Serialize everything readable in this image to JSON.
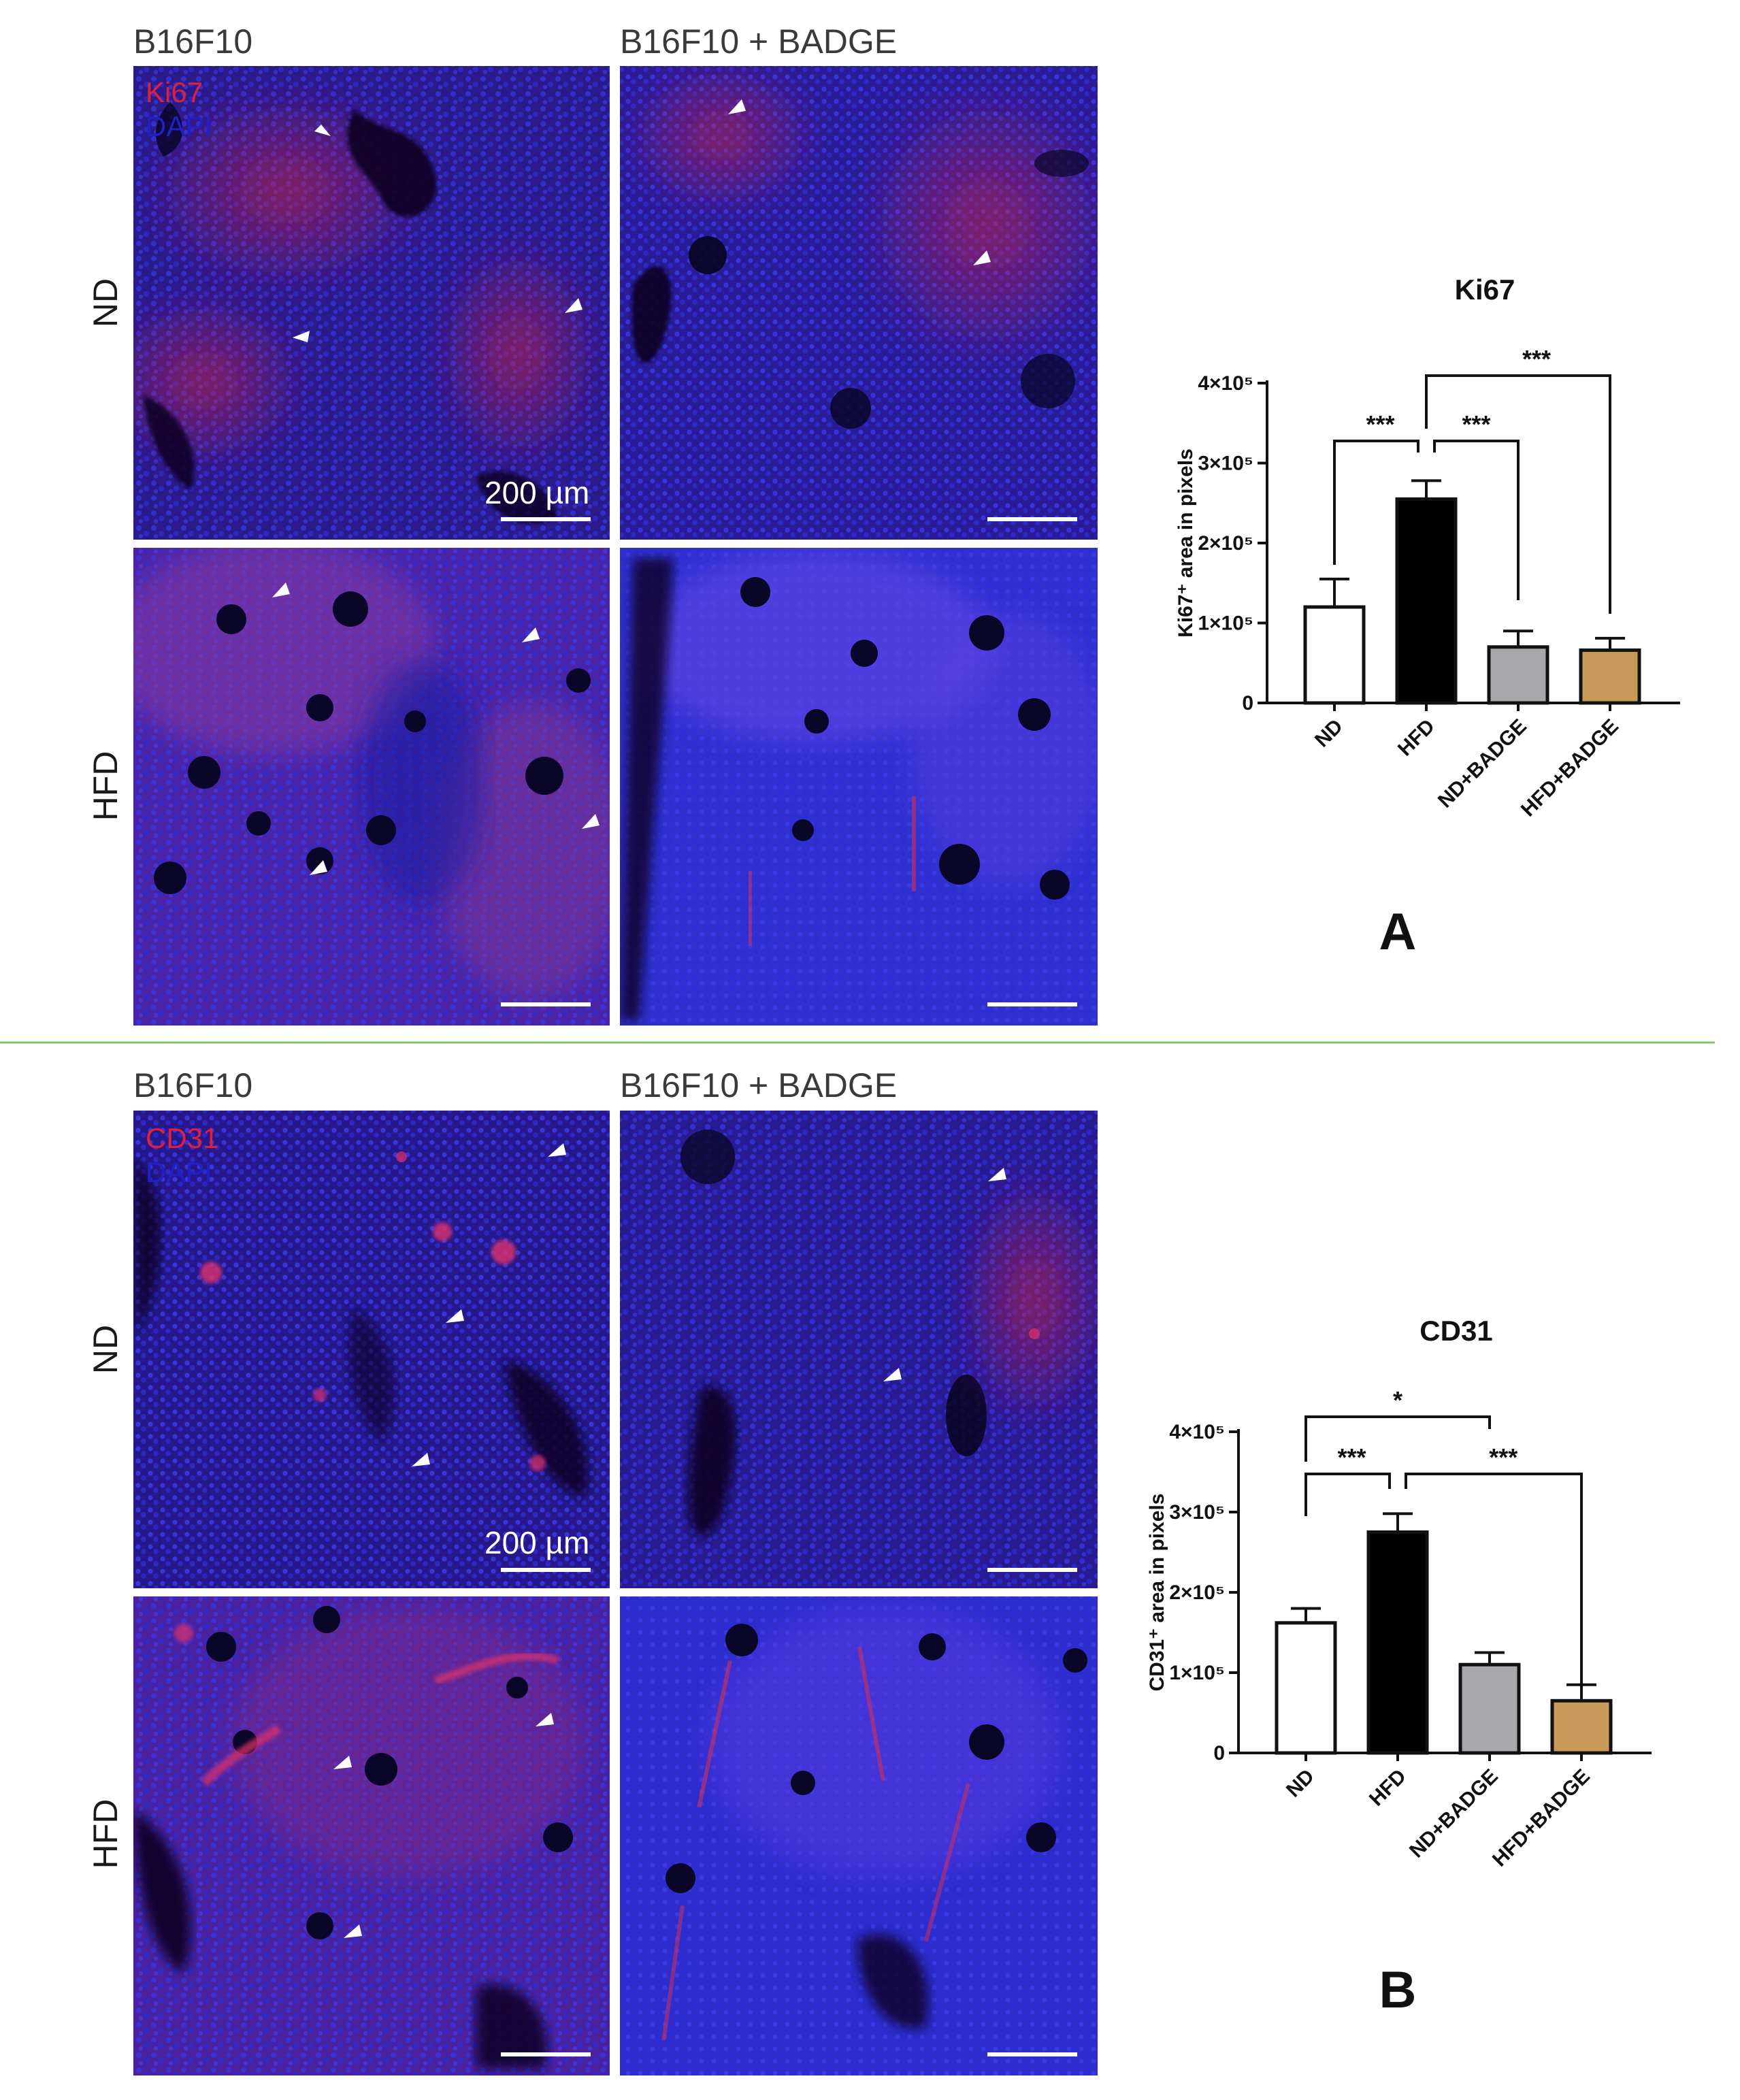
{
  "colors": {
    "nuclei_blue": "#2a2ad0",
    "tissue_purple": "#5a2a9a",
    "stain_red": "#e0203a",
    "separator_green": "#8ac26a",
    "bar_ND": "#ffffff",
    "bar_HFD": "#000000",
    "bar_ND_BADGE": "#a8a8ac",
    "bar_HFD_BADGE": "#c89a5a"
  },
  "icons": [
    "arrowhead-icon"
  ],
  "panel_A": {
    "col_titles": [
      "B16F10",
      "B16F10 + BADGE"
    ],
    "row_labels": [
      "ND",
      "HFD"
    ],
    "stain": "Ki67",
    "counterstain": "DAPI",
    "scale_bar_label": "200 µm",
    "letter": "A"
  },
  "panel_B": {
    "col_titles": [
      "B16F10",
      "B16F10 + BADGE"
    ],
    "row_labels": [
      "ND",
      "HFD"
    ],
    "stain": "CD31",
    "counterstain": "DAPI",
    "scale_bar_label": "200 µm",
    "letter": "B"
  },
  "chart_data": [
    {
      "type": "bar",
      "title": "Ki67",
      "ylabel": "Ki67⁺ area in pixels",
      "categories": [
        "ND",
        "HFD",
        "ND+BADGE",
        "HFD+BADGE"
      ],
      "values": [
        120000,
        255000,
        70000,
        66000
      ],
      "errors": [
        35000,
        23000,
        20000,
        15000
      ],
      "ylim": [
        0,
        400000
      ],
      "yticks": [
        0,
        100000,
        200000,
        300000,
        400000
      ],
      "ytick_labels": [
        "0",
        "1×10⁵",
        "2×10⁵",
        "3×10⁵",
        "4×10⁵"
      ],
      "significance": [
        {
          "from": 0,
          "to": 1,
          "label": "***"
        },
        {
          "from": 1,
          "to": 2,
          "label": "***"
        },
        {
          "from": 1,
          "to": 3,
          "label": "***"
        }
      ]
    },
    {
      "type": "bar",
      "title": "CD31",
      "ylabel": "CD31⁺ area in pixels",
      "categories": [
        "ND",
        "HFD",
        "ND+BADGE",
        "HFD+BADGE"
      ],
      "values": [
        162000,
        275000,
        110000,
        65000
      ],
      "errors": [
        18000,
        23000,
        15000,
        20000
      ],
      "ylim": [
        0,
        400000
      ],
      "yticks": [
        0,
        100000,
        200000,
        300000,
        400000
      ],
      "ytick_labels": [
        "0",
        "1×10⁵",
        "2×10⁵",
        "3×10⁵",
        "4×10⁵"
      ],
      "significance": [
        {
          "from": 0,
          "to": 2,
          "label": "*"
        },
        {
          "from": 0,
          "to": 1,
          "label": "***"
        },
        {
          "from": 1,
          "to": 3,
          "label": "***"
        }
      ]
    }
  ]
}
